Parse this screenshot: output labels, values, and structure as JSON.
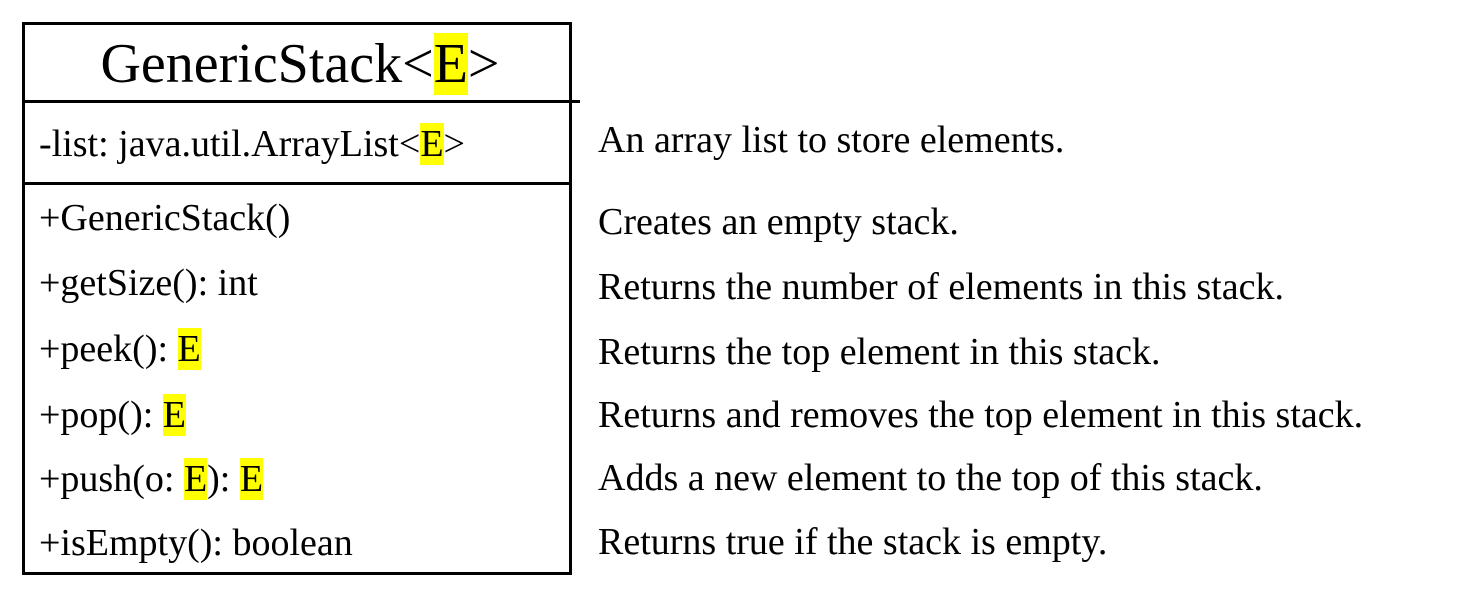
{
  "class_box": {
    "name": "GenericStack",
    "type_param": "E",
    "attribute": {
      "text": "-list: java.util.ArrayList<",
      "type_param": "E",
      "close": ">"
    },
    "methods": [
      {
        "prefix": "+GenericStack()",
        "highlights": []
      },
      {
        "prefix": "+getSize(): int",
        "highlights": []
      },
      {
        "prefix": "+peek(): ",
        "highlights": [
          "E"
        ]
      },
      {
        "prefix": "+pop(): ",
        "highlights": [
          "E"
        ]
      },
      {
        "prefix": "+push(o: ",
        "highlights": [
          "E",
          "E"
        ],
        "mid": "): "
      },
      {
        "prefix": "+isEmpty(): boolean",
        "highlights": []
      }
    ]
  },
  "descriptions": {
    "attribute": "An array list to store elements.",
    "methods": [
      "Creates an empty stack.",
      "Returns the number of elements in this stack.",
      "Returns the top element in this stack.",
      "Returns and removes the top element in this stack.",
      "Adds a new element to the top of this stack.",
      "Returns true if the stack is empty."
    ]
  },
  "colors": {
    "highlight": "#ffff00",
    "border": "#000000",
    "text": "#000000"
  }
}
